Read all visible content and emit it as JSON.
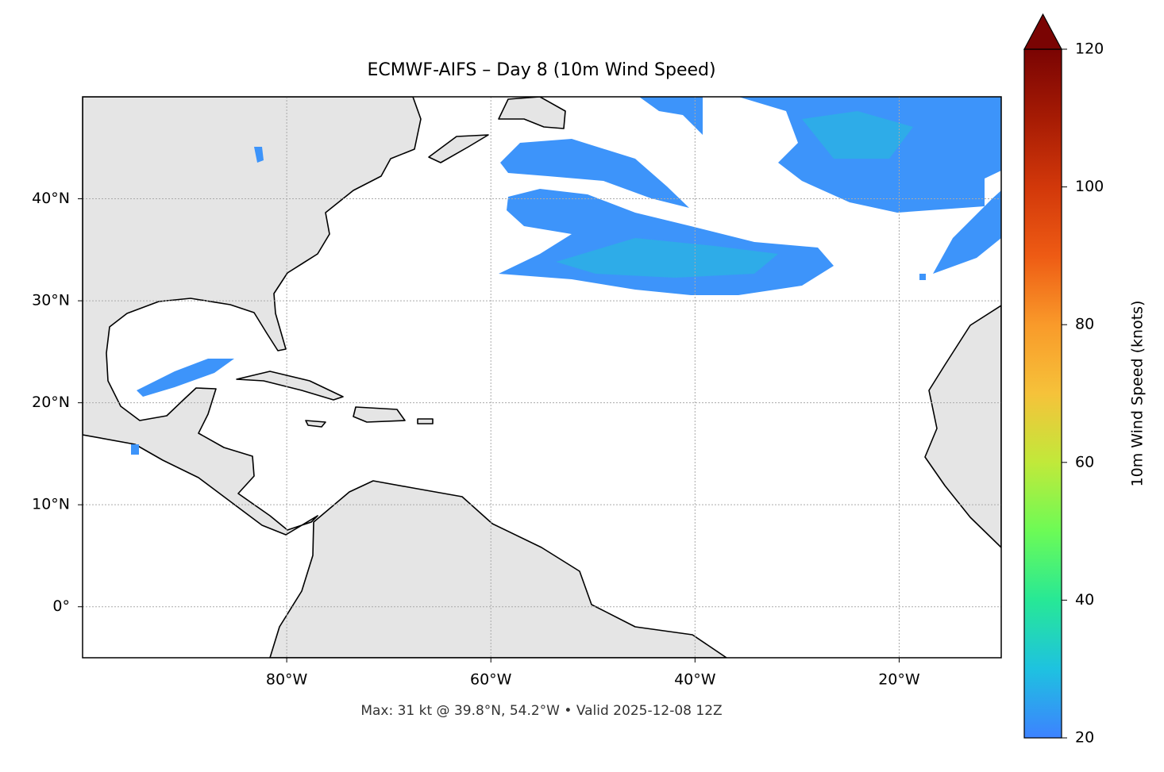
{
  "chart_data": {
    "type": "map",
    "title": "ECMWF-AIFS – Day 8 (10m Wind Speed)",
    "note": "Max: 31 kt @ 39.8°N, 54.2°W • Valid 2025-12-08 12Z",
    "xlim": [
      -100,
      -10
    ],
    "ylim": [
      -5,
      50
    ],
    "xticks": [
      {
        "value": -80,
        "label": "80°W"
      },
      {
        "value": -60,
        "label": "60°W"
      },
      {
        "value": -40,
        "label": "40°W"
      },
      {
        "value": -20,
        "label": "20°W"
      }
    ],
    "yticks": [
      {
        "value": 0,
        "label": "0°"
      },
      {
        "value": 10,
        "label": "10°N"
      },
      {
        "value": 20,
        "label": "20°N"
      },
      {
        "value": 30,
        "label": "30°N"
      },
      {
        "value": 40,
        "label": "40°N"
      }
    ],
    "grid": true,
    "colorbar": {
      "label": "10m Wind Speed (knots)",
      "lim": [
        20,
        120
      ],
      "ticks": [
        20,
        40,
        60,
        80,
        100,
        120
      ]
    }
  }
}
